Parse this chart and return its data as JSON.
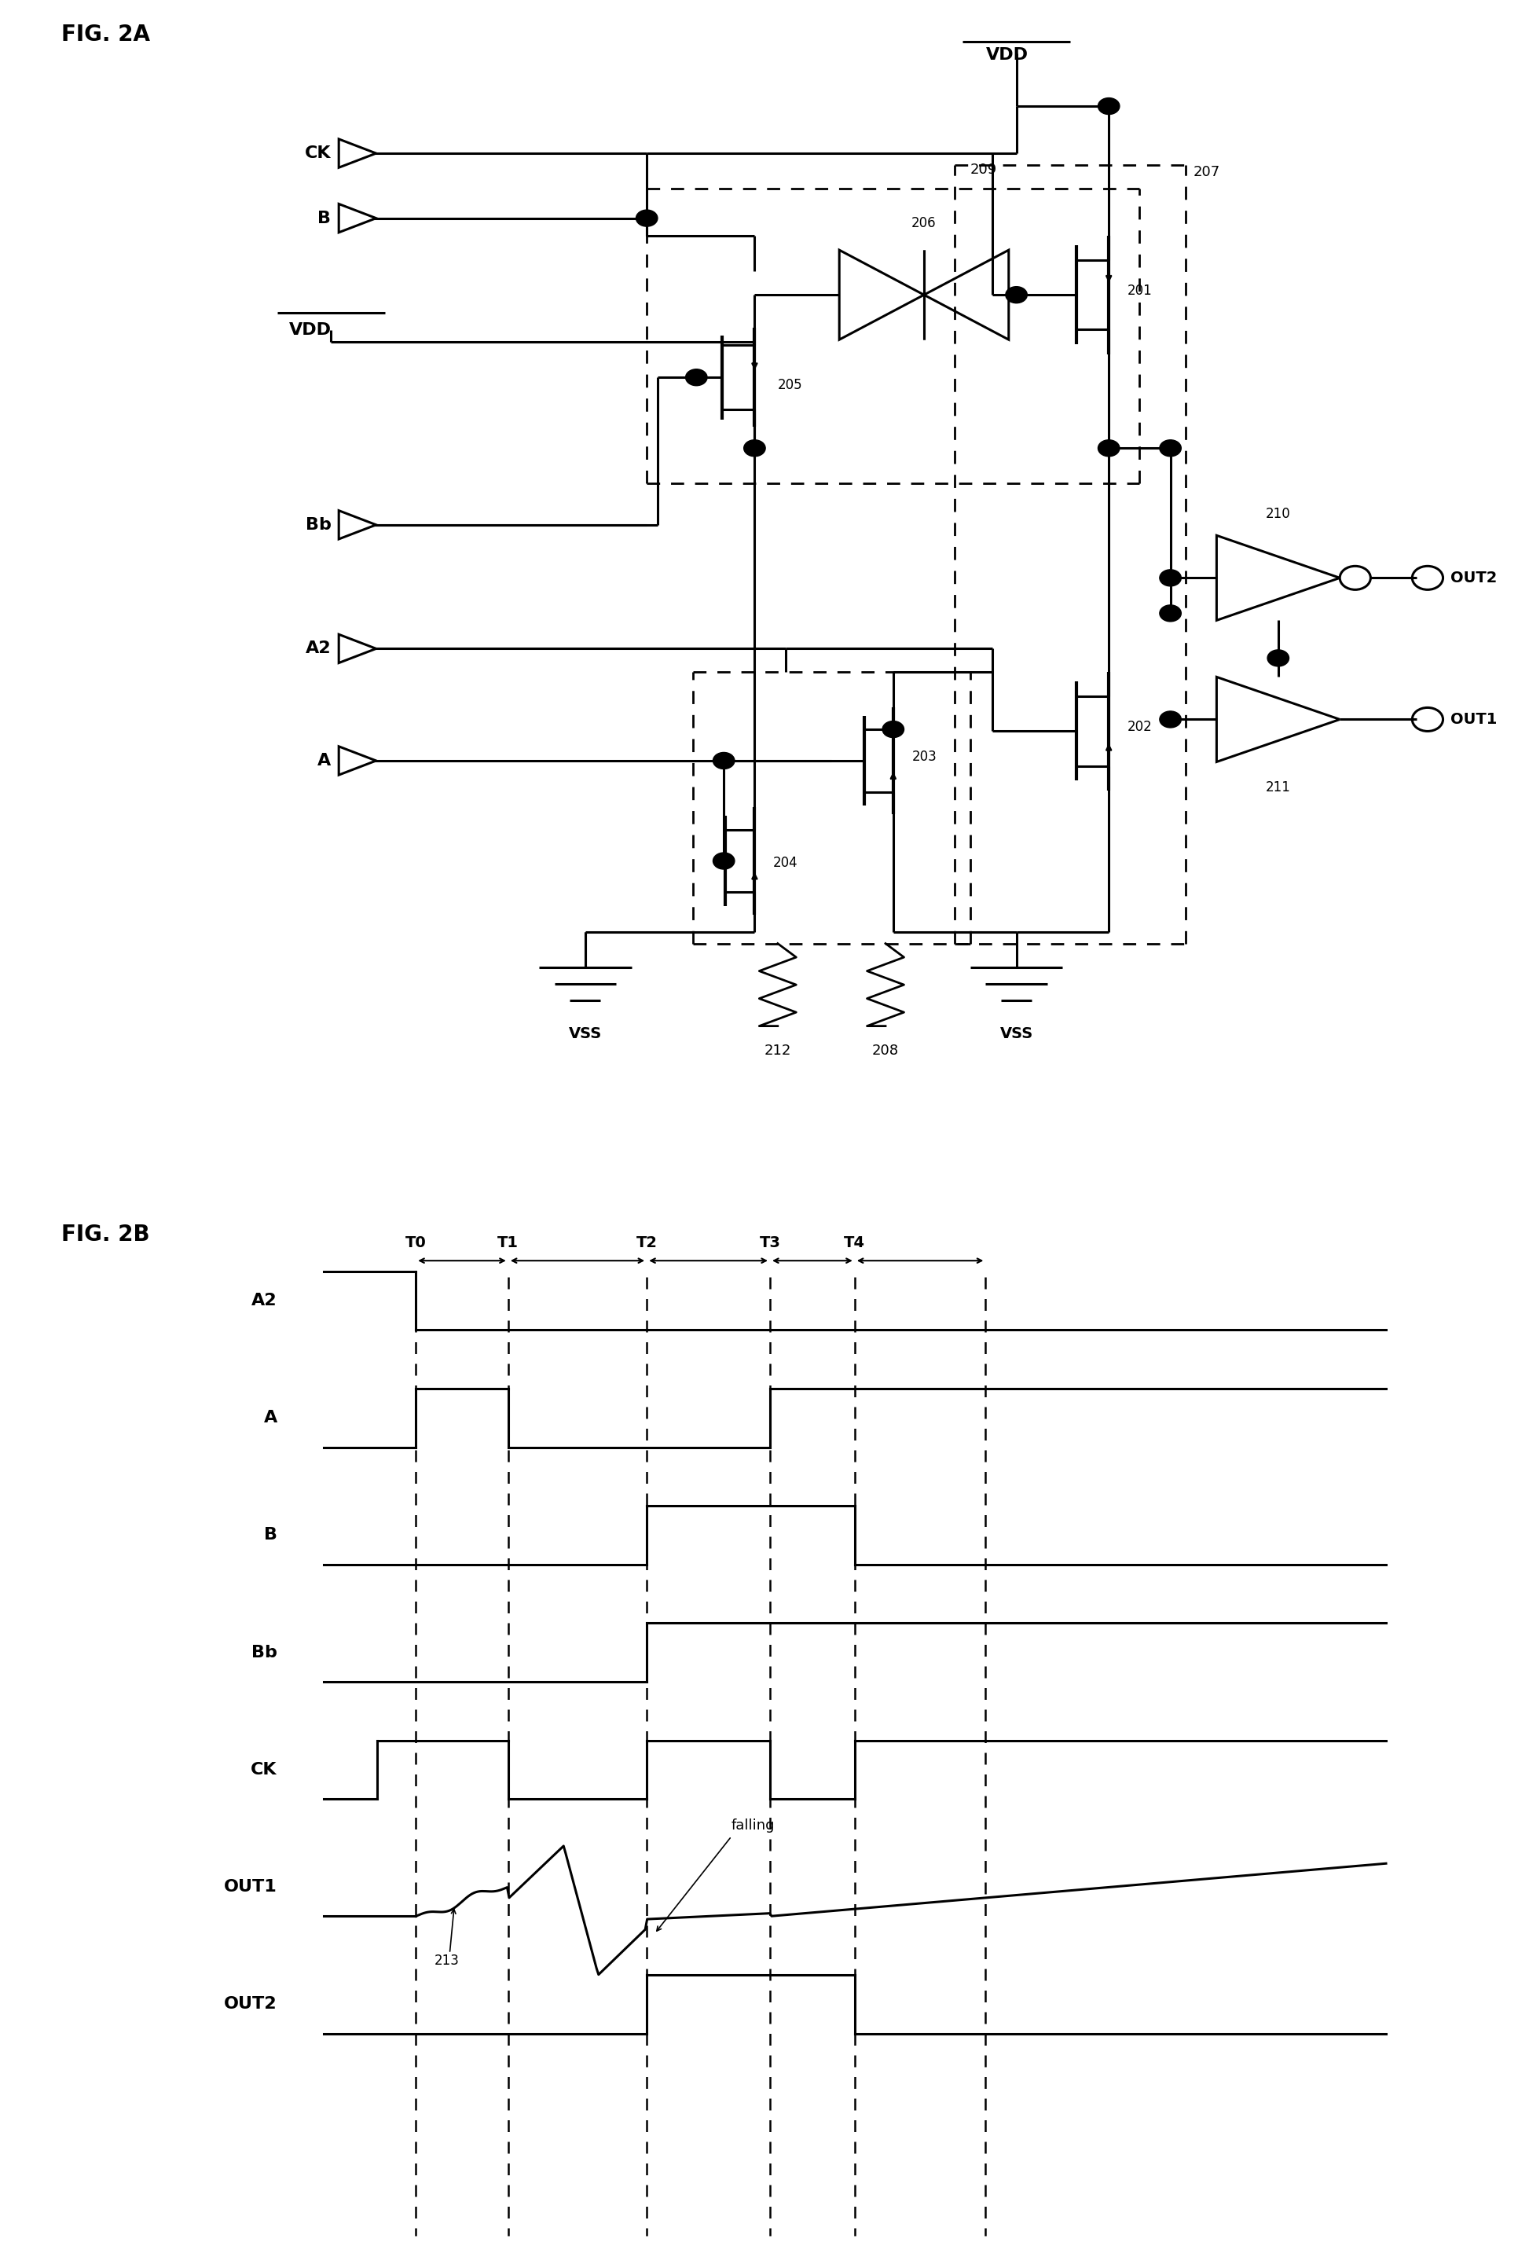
{
  "fig2a_label": "FIG. 2A",
  "fig2b_label": "FIG. 2B",
  "bg_color": "#ffffff",
  "line_color": "#000000",
  "signals": [
    "A2",
    "A",
    "B",
    "Bb",
    "CK",
    "OUT1",
    "OUT2"
  ],
  "timing_labels": [
    "T0",
    "T1",
    "T2",
    "T3",
    "T4"
  ]
}
